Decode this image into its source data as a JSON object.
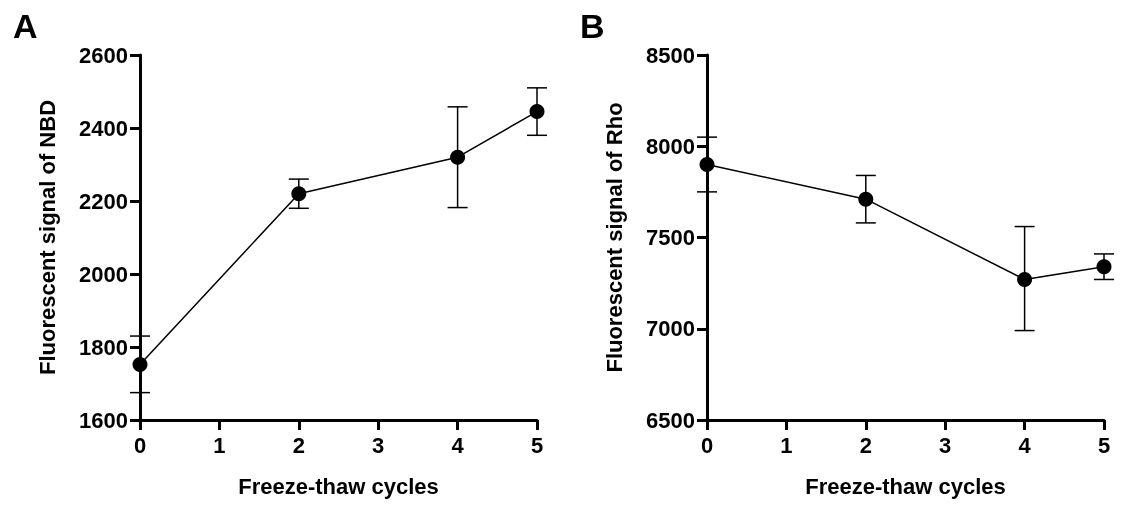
{
  "chart_data": [
    {
      "type": "line",
      "title": "A",
      "xlabel": "Freeze-thaw cycles",
      "ylabel": "Fluorescent signal of NBD",
      "x": [
        0,
        2,
        4,
        5
      ],
      "series": [
        {
          "color": "#000000",
          "values": [
            1752,
            2220,
            2320,
            2445
          ],
          "errors": [
            [
              1675,
              1830
            ],
            [
              2180,
              2260
            ],
            [
              2182,
              2458
            ],
            [
              2380,
              2510
            ]
          ]
        }
      ],
      "xlim": [
        0,
        5
      ],
      "xticks": [
        0,
        1,
        2,
        3,
        4,
        5
      ],
      "ylim": [
        1600,
        2600
      ],
      "yticks": [
        1600,
        1800,
        2000,
        2200,
        2400,
        2600
      ],
      "grid": false,
      "marker": "circle",
      "line_style": "solid"
    },
    {
      "type": "line",
      "title": "B",
      "xlabel": "Freeze-thaw cycles",
      "ylabel": "Fluorescent signal of Rho",
      "x": [
        0,
        2,
        4,
        5
      ],
      "series": [
        {
          "color": "#000000",
          "values": [
            7900,
            7710,
            7270,
            7340
          ],
          "errors": [
            [
              7750,
              8050
            ],
            [
              7580,
              7840
            ],
            [
              6990,
              7560
            ],
            [
              7270,
              7410
            ]
          ]
        }
      ],
      "xlim": [
        0,
        5
      ],
      "xticks": [
        0,
        1,
        2,
        3,
        4,
        5
      ],
      "ylim": [
        6500,
        8500
      ],
      "yticks": [
        6500,
        7000,
        7500,
        8000,
        8500
      ],
      "grid": false,
      "marker": "circle",
      "line_style": "solid"
    }
  ]
}
